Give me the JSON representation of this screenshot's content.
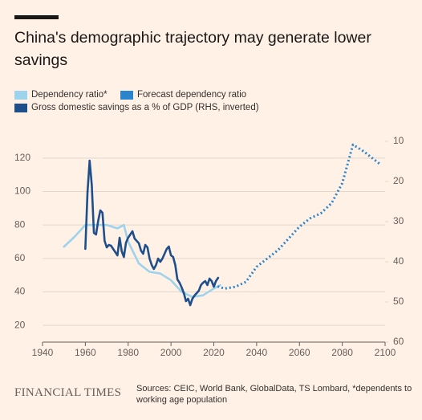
{
  "chart_data": {
    "type": "line",
    "title": "China's demographic trajectory may generate lower savings",
    "source": "Sources: CEIC, World Bank, GlobalData, TS Lombard, *dependents to working age population",
    "brand": "FINANCIAL TIMES",
    "xlim": [
      1940,
      2100
    ],
    "xticks": [
      1940,
      1960,
      1980,
      2000,
      2020,
      2040,
      2060,
      2080,
      2100
    ],
    "ylim": [
      10,
      130
    ],
    "yticks": [
      20,
      40,
      60,
      80,
      100,
      120
    ],
    "y2lim": [
      10,
      60
    ],
    "y2ticks": [
      10,
      20,
      30,
      40,
      50,
      60
    ],
    "y2_inverted": true,
    "grid": true,
    "series": [
      {
        "name": "Dependency ratio*",
        "color": "#9dd3ec",
        "x": [
          1950,
          1955,
          1960,
          1965,
          1970,
          1975,
          1978,
          1980,
          1985,
          1990,
          1995,
          2000,
          2005,
          2010,
          2015,
          2020,
          2023
        ],
        "values": [
          67,
          73,
          80,
          80,
          80,
          78,
          80,
          70,
          57,
          52,
          51,
          47,
          40,
          37,
          38,
          42,
          44
        ]
      },
      {
        "name": "Forecast dependency ratio",
        "color": "#2a85cc",
        "dashed": true,
        "x": [
          2020,
          2025,
          2030,
          2035,
          2040,
          2045,
          2050,
          2055,
          2060,
          2065,
          2070,
          2075,
          2080,
          2085,
          2090,
          2095,
          2098
        ],
        "values": [
          44,
          42,
          43,
          46,
          55,
          60,
          65,
          72,
          79,
          84,
          87,
          93,
          105,
          128,
          124,
          119,
          116
        ]
      },
      {
        "name": "Gross domestic savings as a % of GDP (RHS, inverted)",
        "color": "#1f4f8b",
        "axis": "y2",
        "x": [
          1960,
          1961,
          1962,
          1963,
          1964,
          1965,
          1966,
          1967,
          1968,
          1969,
          1970,
          1971,
          1972,
          1973,
          1975,
          1976,
          1977,
          1978,
          1979,
          1980,
          1982,
          1983,
          1985,
          1986,
          1987,
          1988,
          1989,
          1990,
          1991,
          1992,
          1993,
          1994,
          1995,
          1996,
          1998,
          1999,
          2000,
          2001,
          2002,
          2003,
          2004,
          2005,
          2006,
          2007,
          2008,
          2009,
          2010,
          2011,
          2013,
          2014,
          2015,
          2016,
          2017,
          2018,
          2019,
          2020,
          2021,
          2022
        ],
        "values": [
          36.8,
          22.8,
          14.8,
          20.8,
          32.8,
          33.2,
          29.8,
          27.2,
          27.8,
          34.8,
          36.4,
          35.8,
          36,
          36.8,
          38.4,
          34,
          37.4,
          38.8,
          35.2,
          34,
          32.4,
          34.2,
          35.4,
          37.2,
          38,
          35.8,
          36.4,
          39.2,
          40.8,
          41.8,
          40.8,
          39.2,
          40,
          39.2,
          36.8,
          36.2,
          38.4,
          38.8,
          40.8,
          44.4,
          45.2,
          46.4,
          47.8,
          49.8,
          49.2,
          50.8,
          49.2,
          48.4,
          47.2,
          45.8,
          45.2,
          44.8,
          45.8,
          44.2,
          44.8,
          46.2,
          44.8,
          44
        ]
      }
    ]
  }
}
